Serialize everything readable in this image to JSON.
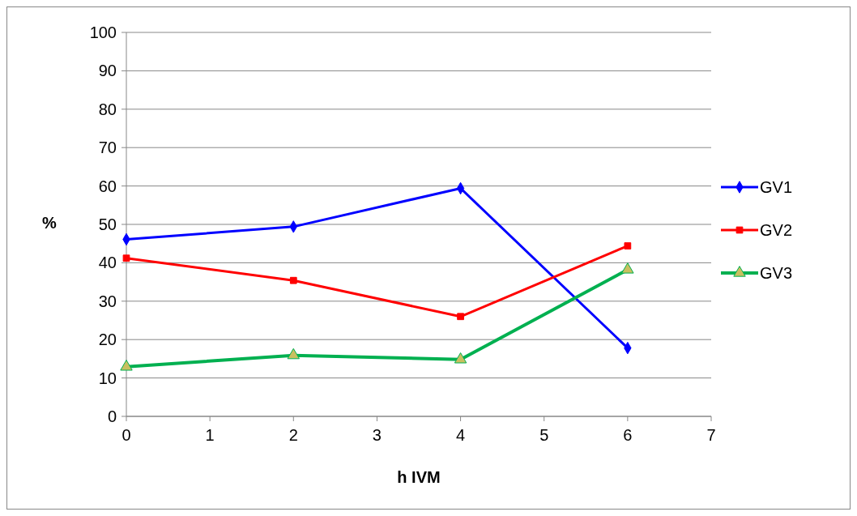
{
  "chart_data": {
    "type": "line",
    "xlabel": "h IVM",
    "ylabel": "%",
    "x": [
      0,
      2,
      4,
      6
    ],
    "series": [
      {
        "name": "GV1",
        "color": "#0000ff",
        "marker": "diamond",
        "values": [
          46.1,
          49.4,
          59.4,
          17.8
        ]
      },
      {
        "name": "GV2",
        "color": "#ff0000",
        "marker": "square",
        "values": [
          41.2,
          35.4,
          26.0,
          44.4
        ]
      },
      {
        "name": "GV3",
        "color": "#00b050",
        "marker": "triangle",
        "values": [
          12.9,
          15.9,
          14.8,
          38.2
        ]
      }
    ],
    "xlim": [
      0,
      7
    ],
    "xticks": [
      0,
      1,
      2,
      3,
      4,
      5,
      6,
      7
    ],
    "ylim": [
      0,
      100
    ],
    "yticks": [
      0,
      10,
      20,
      30,
      40,
      50,
      60,
      70,
      80,
      90,
      100
    ],
    "grid": "y",
    "legend": "right",
    "line_style": "solid"
  }
}
